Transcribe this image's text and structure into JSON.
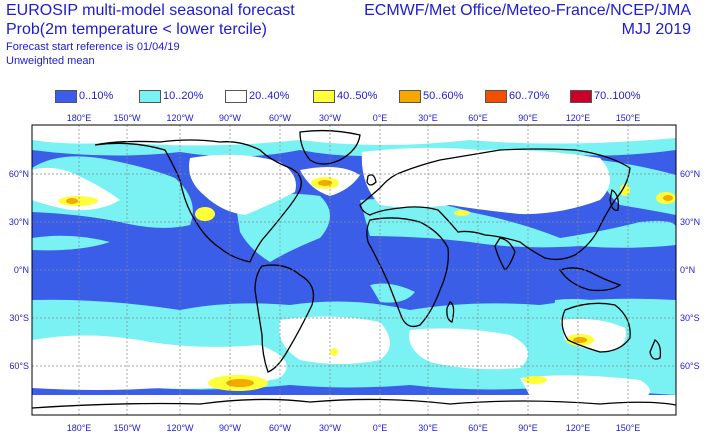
{
  "header": {
    "title_line1": "EUROSIP multi-model seasonal forecast",
    "title_line2": "Prob(2m temperature < lower tercile)",
    "forecast_ref": "Forecast start reference is 01/04/19",
    "weighting": "Unweighted mean",
    "centres": "ECMWF/Met Office/Meteo-France/NCEP/JMA",
    "season": "MJJ 2019"
  },
  "legend": [
    {
      "label": "0..10%",
      "color": "#3a5ee8"
    },
    {
      "label": "10..20%",
      "color": "#7af2f4"
    },
    {
      "label": "20..40%",
      "color": "#ffffff"
    },
    {
      "label": "40..50%",
      "color": "#ffff3a"
    },
    {
      "label": "50..60%",
      "color": "#f5a800"
    },
    {
      "label": "60..70%",
      "color": "#f24f00"
    },
    {
      "label": "70..100%",
      "color": "#c8002a"
    }
  ],
  "map": {
    "top_lon_labels": [
      "180°E",
      "150°W",
      "120°W",
      "90°W",
      "60°W",
      "30°W",
      "0°E",
      "30°E",
      "60°E",
      "90°E",
      "120°E",
      "150°E"
    ],
    "bottom_lon_labels": [
      "180°E",
      "150°W",
      "120°W",
      "90°W",
      "60°W",
      "30°W",
      "0°E",
      "30°E",
      "60°E",
      "90°E",
      "120°E",
      "150°E"
    ],
    "left_lat_labels": [
      "60°N",
      "30°N",
      "0°N",
      "30°S",
      "60°S"
    ],
    "right_lat_labels": [
      "60°N",
      "30°N",
      "0°N",
      "30°S",
      "60°S"
    ]
  }
}
